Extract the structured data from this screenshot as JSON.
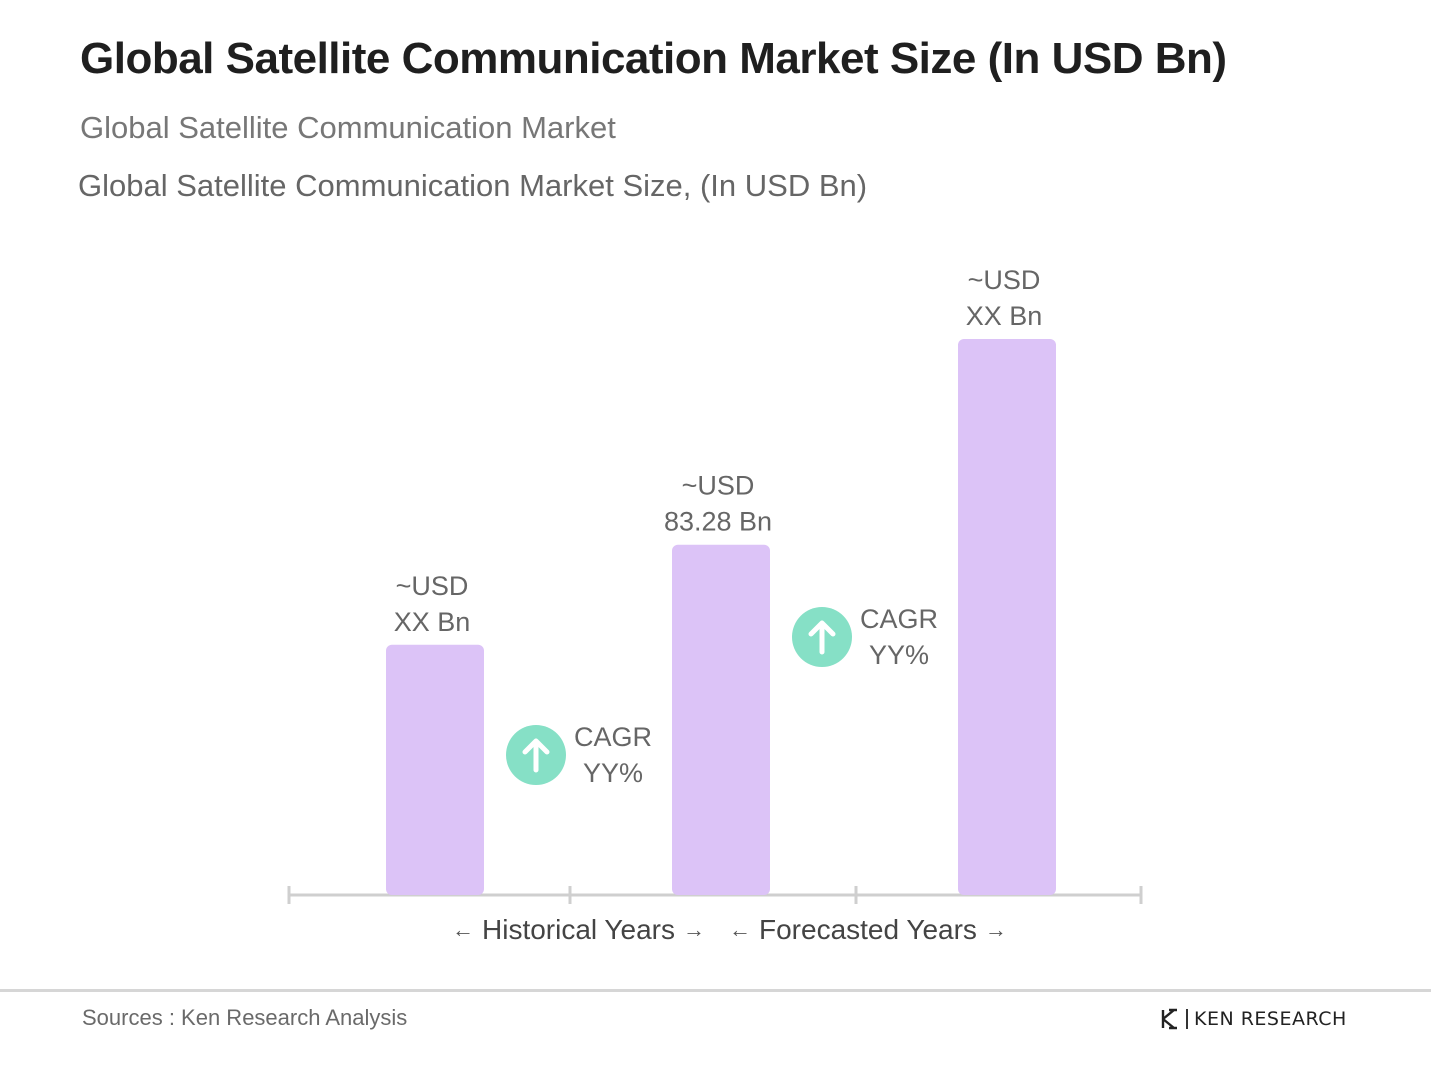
{
  "title": "Global Satellite Communication Market Size (In USD Bn)",
  "subtitle": "Global Satellite Communication Market",
  "subtitle2": "Global Satellite Communication Market Size, (In USD Bn)",
  "chart_data": {
    "type": "bar",
    "categories": [
      "",
      "",
      ""
    ],
    "values": [
      45,
      63,
      100
    ],
    "data_labels": [
      [
        "~USD",
        "XX Bn"
      ],
      [
        "~USD",
        "83.28 Bn"
      ],
      [
        "~USD",
        "XX Bn"
      ]
    ],
    "cagr_annotations": [
      [
        "CAGR",
        "YY%"
      ],
      [
        "CAGR",
        "YY%"
      ]
    ],
    "bar_color": "#dcc3f7",
    "cagr_icon_color": "#86e0c6",
    "period_labels": [
      "Historical Years",
      "Forecasted Years"
    ],
    "grid": false
  },
  "footer": {
    "source": "Sources : Ken Research Analysis",
    "logo_text": "KEN RESEARCH"
  }
}
